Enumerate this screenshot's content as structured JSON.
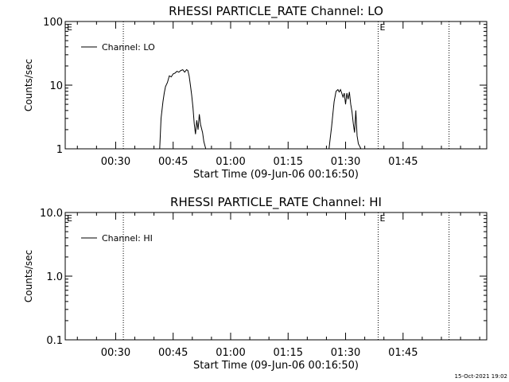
{
  "footer": {
    "timestamp": "15-Oct-2021 19:02"
  },
  "chart_data": [
    {
      "type": "line",
      "title": "RHESSI PARTICLE_RATE Channel: LO",
      "xlabel": "Start Time (09-Jun-06 00:16:50)",
      "ylabel": "Counts/sec",
      "yscale": "log",
      "ylim": [
        1,
        100
      ],
      "yticks": [
        1,
        10,
        100
      ],
      "ytick_labels": [
        "1",
        "10",
        "100"
      ],
      "xlim": [
        "00:16:50",
        "02:06:50"
      ],
      "xtick_labels": [
        "00:30",
        "00:45",
        "01:00",
        "01:15",
        "01:30",
        "01:45"
      ],
      "vlines": [
        {
          "time": "00:32:00",
          "label": ""
        },
        {
          "time": "01:38:30",
          "label": "E"
        },
        {
          "time": "01:57:00",
          "label": ""
        }
      ],
      "left_marker": "E",
      "legend": {
        "position": "top-left",
        "entries": [
          "Channel: LO"
        ]
      },
      "series": [
        {
          "name": "Channel: LO",
          "x": [
            "00:41:30",
            "00:41:50",
            "00:42:20",
            "00:42:40",
            "00:43:00",
            "00:43:30",
            "00:44:00",
            "00:44:30",
            "00:45:00",
            "00:45:30",
            "00:46:00",
            "00:46:30",
            "00:47:00",
            "00:47:30",
            "00:48:00",
            "00:48:30",
            "00:48:50",
            "00:49:10",
            "00:49:30",
            "00:49:50",
            "00:50:10",
            "00:50:30",
            "00:50:50",
            "00:51:10",
            "00:51:30",
            "00:51:50",
            "00:52:10",
            "00:52:40",
            "00:53:00",
            "00:53:30"
          ],
          "y": [
            1.0,
            3.0,
            5.5,
            7.5,
            9.5,
            11.0,
            14.0,
            13.5,
            15.0,
            15.5,
            16.5,
            16.0,
            17.0,
            17.5,
            16.0,
            17.5,
            17.0,
            14.0,
            10.0,
            7.0,
            4.5,
            2.5,
            1.7,
            2.8,
            2.0,
            3.5,
            2.4,
            1.8,
            1.3,
            1.0
          ]
        },
        {
          "name": "Channel: LO",
          "x": [
            "01:25:40",
            "01:26:00",
            "01:26:20",
            "01:26:40",
            "01:27:00",
            "01:27:30",
            "01:28:00",
            "01:28:20",
            "01:28:40",
            "01:29:00",
            "01:29:20",
            "01:29:40",
            "01:30:00",
            "01:30:20",
            "01:30:40",
            "01:31:00",
            "01:31:20",
            "01:31:40",
            "01:32:00",
            "01:32:20",
            "01:32:40",
            "01:33:00",
            "01:33:20",
            "01:33:40",
            "01:34:00"
          ],
          "y": [
            1.0,
            1.5,
            2.2,
            3.5,
            5.5,
            8.0,
            8.5,
            7.8,
            8.5,
            7.5,
            6.5,
            7.5,
            5.0,
            7.5,
            6.0,
            7.8,
            5.0,
            3.8,
            2.5,
            1.8,
            4.0,
            1.6,
            1.2,
            1.1,
            1.0
          ]
        }
      ]
    },
    {
      "type": "line",
      "title": "RHESSI PARTICLE_RATE Channel: HI",
      "xlabel": "Start Time (09-Jun-06 00:16:50)",
      "ylabel": "Counts/sec",
      "yscale": "log",
      "ylim": [
        0.1,
        10
      ],
      "yticks": [
        0.1,
        1,
        10
      ],
      "ytick_labels": [
        "0.1",
        "1.0",
        "10.0"
      ],
      "xlim": [
        "00:16:50",
        "02:06:50"
      ],
      "xtick_labels": [
        "00:30",
        "00:45",
        "01:00",
        "01:15",
        "01:30",
        "01:45"
      ],
      "vlines": [
        {
          "time": "00:32:00",
          "label": ""
        },
        {
          "time": "01:38:30",
          "label": "E"
        },
        {
          "time": "01:57:00",
          "label": ""
        }
      ],
      "left_marker": "E",
      "legend": {
        "position": "top-left",
        "entries": [
          "Channel: HI"
        ]
      },
      "series": []
    }
  ]
}
